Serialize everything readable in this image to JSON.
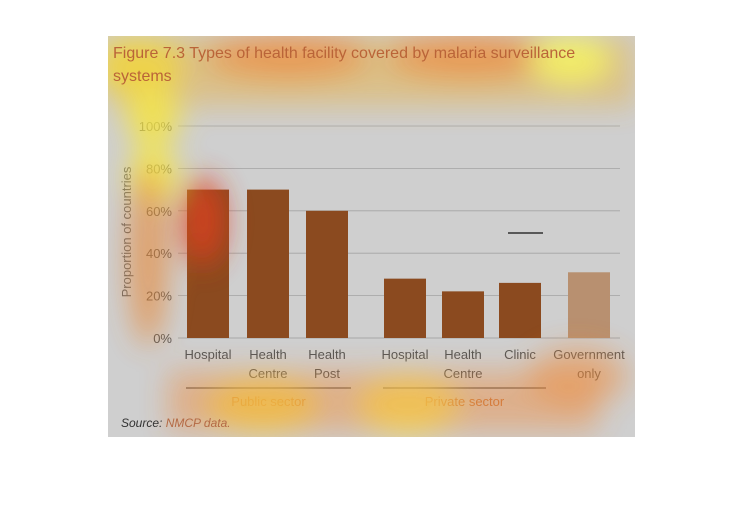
{
  "figure": {
    "title": "Figure 7.3 Types of health facility covered by malaria surveillance systems",
    "source_label": "Source:",
    "source_value": "NMCP data."
  },
  "colors": {
    "bar": "#8b4a1f",
    "bar_government": "#b89070",
    "background": "#cfcfcf",
    "gridline": "#a3a3a3",
    "title": "#ba6438"
  },
  "chart_data": {
    "type": "bar",
    "ylabel": "Proportion of countries",
    "ylim": [
      0,
      100
    ],
    "yticks": [
      0,
      20,
      40,
      60,
      80,
      100
    ],
    "ytick_labels": [
      "0%",
      "20%",
      "40%",
      "60%",
      "80%",
      "100%"
    ],
    "grid": true,
    "categories": [
      {
        "label": [
          "Hospital"
        ],
        "value": 70,
        "group": "Public sector"
      },
      {
        "label": [
          "Health",
          "Centre"
        ],
        "value": 70,
        "group": "Public sector"
      },
      {
        "label": [
          "Health",
          "Post"
        ],
        "value": 60,
        "group": "Public sector"
      },
      {
        "label": [
          "Hospital"
        ],
        "value": 28,
        "group": "Private sector"
      },
      {
        "label": [
          "Health",
          "Centre"
        ],
        "value": 22,
        "group": "Private sector"
      },
      {
        "label": [
          "Clinic"
        ],
        "value": 26,
        "group": "Private sector"
      },
      {
        "label": [
          "Government",
          "only"
        ],
        "value": 31,
        "group": ""
      }
    ],
    "groups": [
      "Public sector",
      "Private sector"
    ]
  }
}
